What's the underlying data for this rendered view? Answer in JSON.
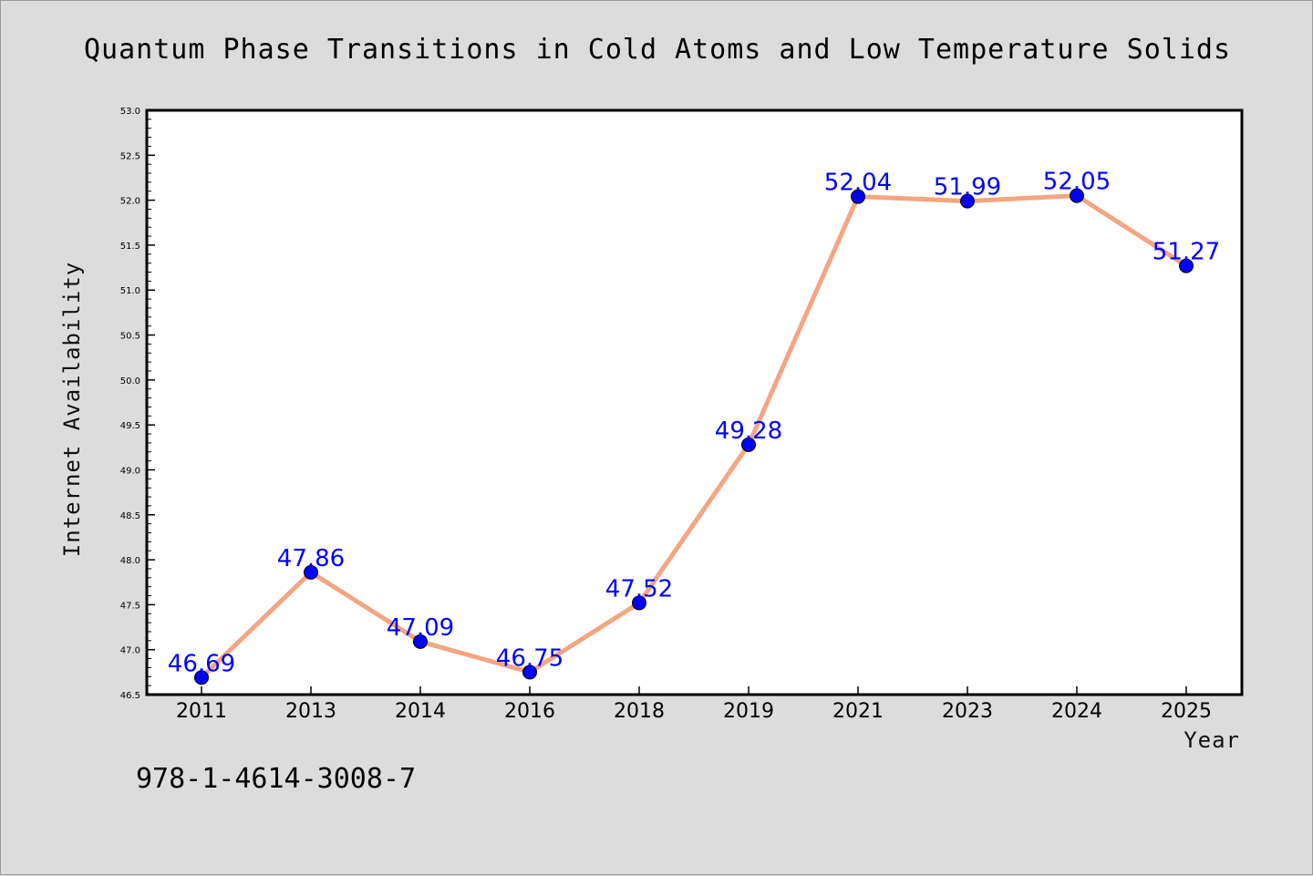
{
  "chart_data": {
    "type": "line",
    "title": "Quantum Phase Transitions in Cold Atoms and Low Temperature Solids",
    "xlabel": "Year",
    "ylabel": "Internet Availability",
    "categories": [
      "2011",
      "2013",
      "2014",
      "2016",
      "2018",
      "2019",
      "2021",
      "2023",
      "2024",
      "2025"
    ],
    "series": [
      {
        "values": [
          46.69,
          47.86,
          47.09,
          46.75,
          47.52,
          49.28,
          52.04,
          51.99,
          52.05,
          51.27
        ]
      }
    ],
    "data_labels": [
      "46.69",
      "47.86",
      "47.09",
      "46.75",
      "47.52",
      "49.28",
      "52.04",
      "51.99",
      "52.05",
      "51.27"
    ],
    "ylim": [
      46.5,
      53.0
    ],
    "yticks": [
      "46.5",
      "47.0",
      "47.5",
      "48.0",
      "48.5",
      "49.0",
      "49.5",
      "50.0",
      "50.5",
      "51.0",
      "51.5",
      "52.0",
      "52.5",
      "53.0"
    ],
    "grid": false,
    "legend": "none",
    "colors": {
      "line": "#f4a582",
      "marker": "#0000ff",
      "label": "#0000ff",
      "background": "#dcdcdc",
      "plot_background": "#ffffff"
    }
  },
  "footer": {
    "isbn": "978-1-4614-3008-7"
  }
}
